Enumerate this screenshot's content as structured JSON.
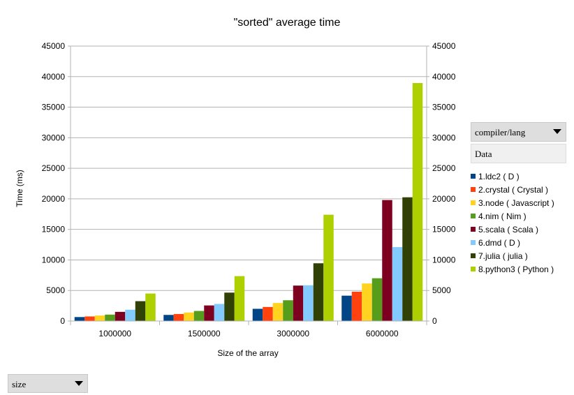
{
  "chart_data": {
    "type": "bar",
    "title": "\"sorted\" average time",
    "xlabel": "Size of the array",
    "ylabel": "Time (ms)",
    "ylim": [
      0,
      45000
    ],
    "yticks": [
      0,
      5000,
      10000,
      15000,
      20000,
      25000,
      30000,
      35000,
      40000,
      45000
    ],
    "categories": [
      "1000000",
      "1500000",
      "3000000",
      "6000000"
    ],
    "series": [
      {
        "name": "1.ldc2 ( D )",
        "color": "#004586",
        "values": [
          650,
          1000,
          2000,
          4150
        ]
      },
      {
        "name": "2.crystal ( Crystal )",
        "color": "#ff420e",
        "values": [
          750,
          1150,
          2300,
          4800
        ]
      },
      {
        "name": "3.node ( Javascript )",
        "color": "#ffd320",
        "values": [
          900,
          1400,
          2950,
          6150
        ]
      },
      {
        "name": "4.nim ( Nim )",
        "color": "#579d1c",
        "values": [
          1050,
          1650,
          3400,
          7000
        ]
      },
      {
        "name": "5.scala ( Scala )",
        "color": "#7e0021",
        "values": [
          1500,
          2550,
          5800,
          19800
        ]
      },
      {
        "name": "6.dmd ( D )",
        "color": "#83caff",
        "values": [
          1850,
          2800,
          5850,
          12100
        ]
      },
      {
        "name": "7.julia ( julia )",
        "color": "#314004",
        "values": [
          3250,
          4650,
          9450,
          20250
        ]
      },
      {
        "name": "8.python3 ( Python )",
        "color": "#aecf00",
        "values": [
          4500,
          7350,
          17400,
          38950
        ]
      }
    ]
  },
  "controls": {
    "column_field": "compiler/lang",
    "data_field": "Data",
    "row_field": "size"
  }
}
